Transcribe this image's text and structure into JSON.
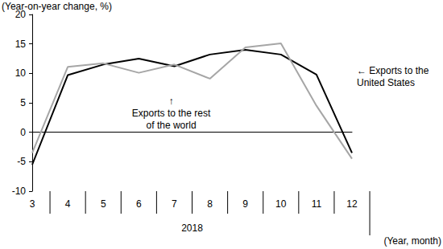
{
  "chart_data": {
    "type": "line",
    "y_label": "(Year-on-year change, %)",
    "x_label": "(Year, month)",
    "year_label": "2018",
    "categories": [
      "3",
      "4",
      "5",
      "6",
      "7",
      "8",
      "9",
      "10",
      "11",
      "12"
    ],
    "series": [
      {
        "name": "Exports to the United States",
        "color": "#000000",
        "line_style": "solid",
        "values": [
          -5.5,
          9.7,
          11.5,
          12.5,
          11.2,
          13.2,
          14.0,
          13.2,
          9.8,
          -3.5
        ]
      },
      {
        "name": "Exports to the rest of the world",
        "color": "#a6a6a6",
        "line_style": "solid",
        "values": [
          -3.5,
          11.1,
          11.7,
          10.1,
          11.5,
          9.1,
          14.4,
          15.1,
          4.5,
          -4.5
        ]
      }
    ],
    "annotations": [
      "↑\nExports to the rest\nof the world",
      "← Exports to the\nUnited States"
    ],
    "ylim": [
      -10,
      20
    ],
    "yticks": [
      -10,
      -5,
      0,
      5,
      10,
      15,
      20
    ],
    "grid": false,
    "legend": false
  }
}
